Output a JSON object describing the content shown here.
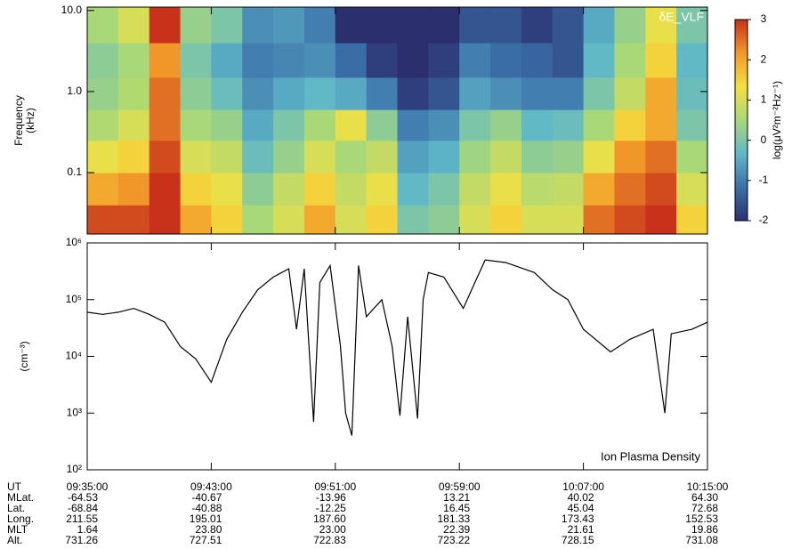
{
  "chart_data": [
    {
      "type": "heatmap",
      "annotation": "δE_VLF",
      "ylabel": [
        "Frequency",
        "(kHz)"
      ],
      "log_y": true,
      "ylim": [
        0.0175,
        11
      ],
      "yticks": [
        {
          "value": 0.1,
          "label": "0.1"
        },
        {
          "value": 1,
          "label": "1.0"
        },
        {
          "value": 10,
          "label": "10.0"
        }
      ],
      "xlim": [
        "09:35:00",
        "10:15:00"
      ],
      "bins": [
        "09:35:00",
        "09:37:00",
        "09:39:00",
        "09:41:00",
        "09:43:00",
        "09:45:00",
        "09:47:00",
        "09:49:00",
        "09:51:00",
        "09:53:00",
        "09:55:00",
        "09:57:00",
        "09:59:00",
        "10:01:00",
        "10:03:00",
        "10:05:00",
        "10:07:00",
        "10:09:00",
        "10:11:00",
        "10:13:00",
        "10:15:00"
      ],
      "y_bins": [
        0.0175,
        0.04,
        0.1,
        0.25,
        0.6,
        1.5,
        4,
        11
      ],
      "values": [
        [
          2.8,
          2.8,
          3,
          2,
          1.5,
          0.5,
          1,
          2,
          1,
          1.5,
          0,
          0.2,
          1,
          1.5,
          1,
          1,
          2.5,
          2.8,
          3,
          1.5
        ],
        [
          2,
          2.2,
          3,
          1.5,
          1.2,
          0.2,
          0.8,
          1.5,
          0.8,
          1.2,
          -0.3,
          0,
          0.8,
          1.2,
          0.7,
          0.8,
          2,
          2.5,
          2.8,
          1
        ],
        [
          1.2,
          1.5,
          2.8,
          1,
          0.8,
          -0.2,
          0.3,
          1,
          0.5,
          0.8,
          -0.6,
          -0.4,
          0.4,
          0.8,
          0.2,
          0.3,
          1.2,
          2.2,
          2.5,
          0.5
        ],
        [
          0.6,
          1,
          2.5,
          0.5,
          0.3,
          -0.5,
          0,
          0.5,
          1.2,
          0.2,
          -1,
          -0.8,
          0,
          0.3,
          -0.3,
          -0.2,
          0.5,
          1.5,
          2,
          0
        ],
        [
          0.3,
          0.6,
          2.5,
          0.2,
          -0.2,
          -0.8,
          -0.5,
          -0.3,
          -0.5,
          -1,
          -1.8,
          -1.5,
          -0.6,
          -0.8,
          -1,
          -1,
          0,
          0.8,
          2,
          -0.2
        ],
        [
          0.2,
          0.5,
          2.2,
          0,
          -0.5,
          -1,
          -0.9,
          -0.8,
          -1.2,
          -1.8,
          -2,
          -1.8,
          -1,
          -1.2,
          -1.3,
          -1.5,
          -0.3,
          0.5,
          1.5,
          -0.3
        ],
        [
          0.5,
          1,
          3,
          0.3,
          0,
          -0.8,
          -0.7,
          -1,
          -2,
          -2,
          -2,
          -2,
          -1.5,
          -1.5,
          -1.8,
          -1.5,
          -0.5,
          0.3,
          1.2,
          0
        ]
      ],
      "clim": [
        -2,
        3
      ],
      "cticks": [
        -2,
        -1,
        0,
        1,
        2,
        3
      ],
      "clabel": "log(μV²m⁻²Hz⁻¹)",
      "colormap": [
        "#2b2f6e",
        "#3b6fa8",
        "#5fb8c9",
        "#a8d878",
        "#f4e040",
        "#f39a2a",
        "#c8321a"
      ]
    },
    {
      "type": "line",
      "annotation": "Ion Plasma Density",
      "ylabel": "(cm⁻³)",
      "log_y": true,
      "color": "#000000",
      "ylim": [
        100,
        1000000
      ],
      "yticks": [
        {
          "value": 100,
          "label": "10²"
        },
        {
          "value": 1000,
          "label": "10³"
        },
        {
          "value": 10000,
          "label": "10⁴"
        },
        {
          "value": 100000,
          "label": "10⁵"
        },
        {
          "value": 1000000,
          "label": "10⁶"
        }
      ],
      "xlim": [
        "09:35:00",
        "10:15:00"
      ],
      "xticks": [
        "09:35:00",
        "09:43:00",
        "09:51:00",
        "09:59:00",
        "10:07:00",
        "10:15:00"
      ],
      "x": [
        "09:35:00",
        "09:36:00",
        "09:37:00",
        "09:38:00",
        "09:39:00",
        "09:40:00",
        "09:41:00",
        "09:42:00",
        "09:43:00",
        "09:44:00",
        "09:45:00",
        "09:46:00",
        "09:47:00",
        "09:48:00",
        "09:48:30",
        "09:49:00",
        "09:49:36",
        "09:50:00",
        "09:50:40",
        "09:51:20",
        "09:51:40",
        "09:52:04",
        "09:52:30",
        "09:53:00",
        "09:54:00",
        "09:54:40",
        "09:55:10",
        "09:55:40",
        "09:56:18",
        "09:56:40",
        "09:57:00",
        "09:58:00",
        "09:59:15",
        "10:00:00",
        "10:00:40",
        "10:02:00",
        "10:03:50",
        "10:05:00",
        "10:06:00",
        "10:07:00",
        "10:08:45",
        "10:10:00",
        "10:11:30",
        "10:12:15",
        "10:12:40",
        "10:14:00",
        "10:15:00"
      ],
      "values": [
        60000,
        55000,
        60000,
        70000,
        55000,
        40000,
        15000,
        9000,
        3500,
        20000,
        60000,
        150000,
        250000,
        350000,
        30000,
        350000,
        700,
        200000,
        400000,
        15000,
        1000,
        400,
        400000,
        50000,
        100000,
        15000,
        900,
        50000,
        800,
        100000,
        300000,
        250000,
        70000,
        200000,
        500000,
        450000,
        300000,
        150000,
        100000,
        30000,
        12000,
        20000,
        30000,
        1000,
        25000,
        30000,
        40000
      ]
    }
  ],
  "ephemeris": {
    "labels": [
      "UT",
      "MLat.",
      "Lat.",
      "Long.",
      "MLT",
      "Alt."
    ],
    "rows": [
      [
        "-64.53",
        "-40.67",
        "-13.96",
        "13.21",
        "40.02",
        "64.30"
      ],
      [
        "-68.84",
        "-40.88",
        "-12.25",
        "16.45",
        "45.04",
        "72.68"
      ],
      [
        "211.55",
        "195.01",
        "187.60",
        "181.33",
        "173.43",
        "152.53"
      ],
      [
        "1.64",
        "23.80",
        "23.00",
        "22.39",
        "21.61",
        "19.86"
      ],
      [
        "731.26",
        "727.51",
        "722.83",
        "723.22",
        "728.15",
        "731.08"
      ]
    ]
  }
}
